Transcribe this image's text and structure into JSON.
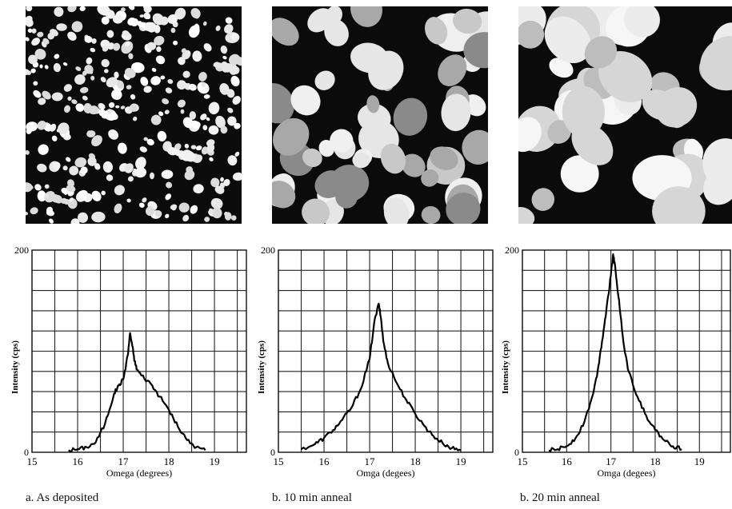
{
  "panels": [
    {
      "id": "a",
      "caption": "a. As deposited",
      "afm": "AFM topography image of small dense grains"
    },
    {
      "id": "b10",
      "caption": "b. 10 min anneal",
      "afm": "AFM topography image of medium grains"
    },
    {
      "id": "b20",
      "caption": "b. 20 min anneal",
      "afm": "AFM topography image of large coalesced grains"
    }
  ],
  "chart_data": [
    {
      "type": "line",
      "xlabel": "Omega (degrees)",
      "ylabel": "Intensity (cps)",
      "xlim": [
        15,
        19.7
      ],
      "ylim": [
        0,
        200
      ],
      "xticks": [
        "15",
        "16",
        "17",
        "18",
        "19"
      ],
      "yticks": [
        "0",
        "200"
      ],
      "grid": true,
      "x": [
        15.8,
        16.0,
        16.2,
        16.4,
        16.6,
        16.8,
        16.9,
        17.0,
        17.1,
        17.15,
        17.2,
        17.25,
        17.3,
        17.4,
        17.6,
        17.8,
        18.0,
        18.2,
        18.4,
        18.6,
        18.8
      ],
      "y": [
        2,
        3,
        5,
        10,
        28,
        58,
        66,
        72,
        96,
        118,
        105,
        90,
        82,
        76,
        68,
        55,
        42,
        25,
        12,
        5,
        2
      ]
    },
    {
      "type": "line",
      "xlabel": "Omga (degees)",
      "ylabel": "Intensity (cps)",
      "xlim": [
        15,
        19.7
      ],
      "ylim": [
        0,
        200
      ],
      "xticks": [
        "15",
        "16",
        "17",
        "18",
        "19"
      ],
      "yticks": [
        "0",
        "200"
      ],
      "grid": true,
      "x": [
        15.5,
        15.8,
        16.0,
        16.2,
        16.4,
        16.6,
        16.8,
        17.0,
        17.1,
        17.2,
        17.25,
        17.3,
        17.4,
        17.6,
        17.8,
        18.0,
        18.2,
        18.4,
        18.6,
        18.8,
        19.0
      ],
      "y": [
        3,
        8,
        14,
        22,
        32,
        44,
        62,
        92,
        128,
        147,
        132,
        110,
        88,
        68,
        52,
        38,
        26,
        16,
        9,
        4,
        2
      ]
    },
    {
      "type": "line",
      "xlabel": "Omga (degees)",
      "ylabel": "Intensity (cps)",
      "xlim": [
        15,
        19.7
      ],
      "ylim": [
        0,
        200
      ],
      "xticks": [
        "15",
        "16",
        "17",
        "18",
        "19"
      ],
      "yticks": [
        "0",
        "200"
      ],
      "grid": true,
      "x": [
        15.6,
        15.8,
        16.0,
        16.2,
        16.4,
        16.6,
        16.7,
        16.8,
        16.9,
        17.0,
        17.05,
        17.1,
        17.2,
        17.3,
        17.4,
        17.6,
        17.8,
        18.0,
        18.2,
        18.4,
        18.6
      ],
      "y": [
        2,
        3,
        6,
        14,
        30,
        58,
        80,
        110,
        142,
        175,
        196,
        182,
        142,
        104,
        80,
        55,
        36,
        22,
        12,
        6,
        3
      ]
    }
  ]
}
